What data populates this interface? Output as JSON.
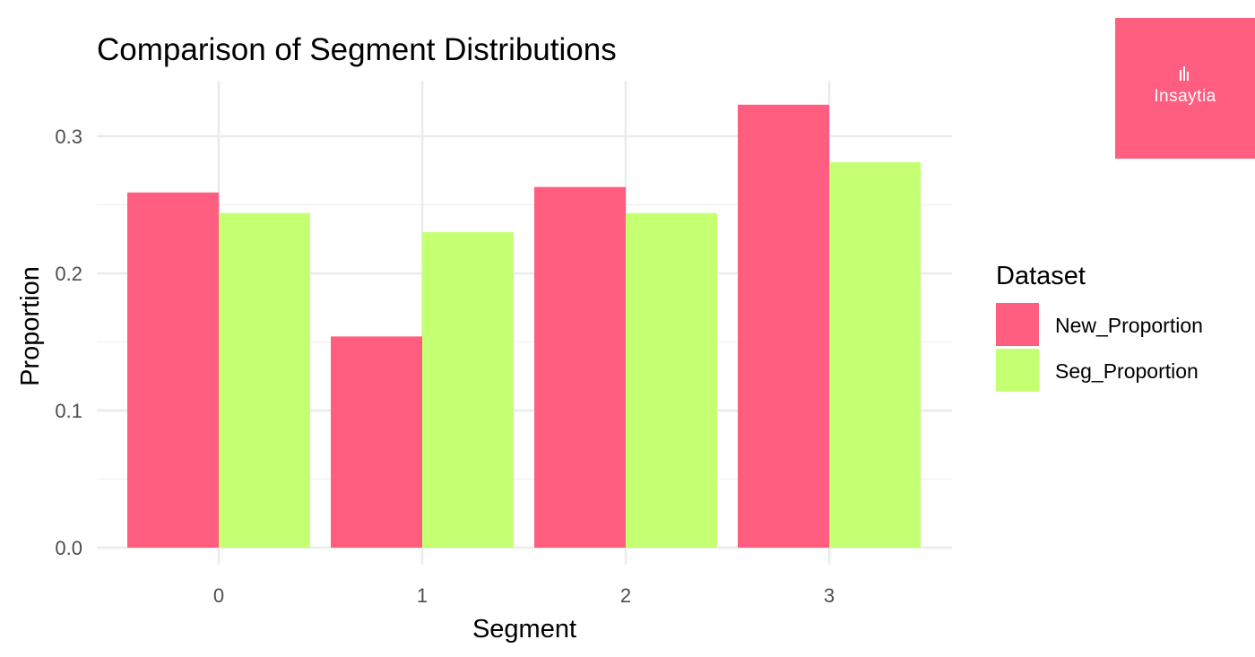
{
  "chart_data": {
    "type": "bar",
    "title": "Comparison of Segment Distributions",
    "xlabel": "Segment",
    "ylabel": "Proportion",
    "categories": [
      "0",
      "1",
      "2",
      "3"
    ],
    "series": [
      {
        "name": "New_Proportion",
        "color": "#FF5E80",
        "values": [
          0.259,
          0.154,
          0.263,
          0.323
        ]
      },
      {
        "name": "Seg_Proportion",
        "color": "#C5FF72",
        "values": [
          0.244,
          0.23,
          0.244,
          0.281
        ]
      }
    ],
    "ylim": [
      0,
      0.3
    ],
    "yticks": [
      0.0,
      0.1,
      0.2,
      0.3
    ],
    "ytick_labels": [
      "0.0",
      "0.1",
      "0.2",
      "0.3"
    ],
    "grid": true,
    "legend": {
      "title": "Dataset",
      "placement": "right"
    }
  },
  "logo": {
    "text": "Insaytia",
    "background": "#FF5E80",
    "icon": "bar-mark-icon"
  }
}
